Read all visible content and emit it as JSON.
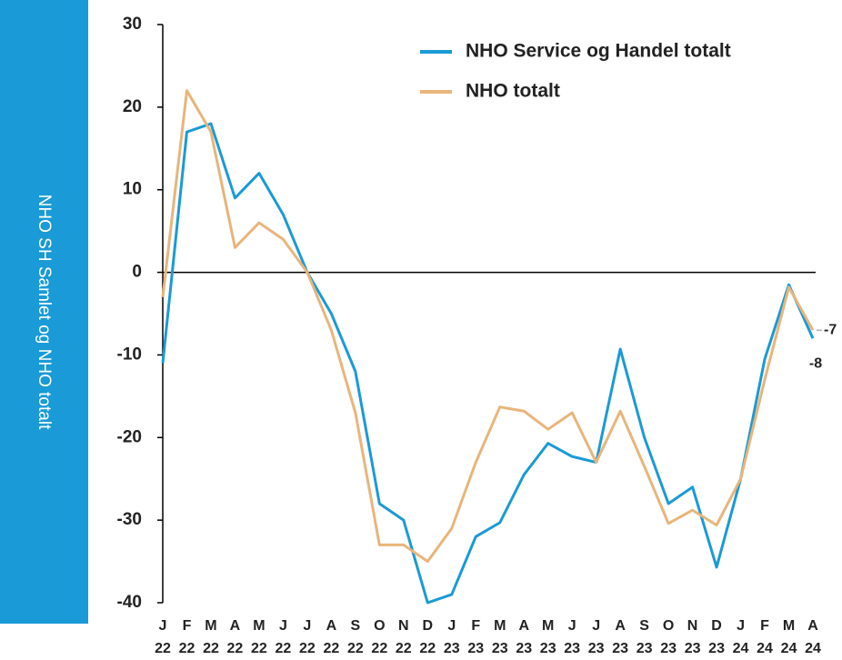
{
  "chart_data": {
    "type": "line",
    "ylabel": "NHO SH Samlet og NHO totalt",
    "categories": [
      "J 22",
      "F 22",
      "M 22",
      "A 22",
      "M 22",
      "J 22",
      "J 22",
      "A 22",
      "S 22",
      "O 22",
      "N 22",
      "D 22",
      "J 23",
      "F 23",
      "M 23",
      "A 23",
      "M 23",
      "J 23",
      "J 23",
      "A 23",
      "S 23",
      "O 23",
      "N 23",
      "D 23",
      "J 24",
      "F 24",
      "M 24",
      "A 24"
    ],
    "series": [
      {
        "name": "NHO Service og Handel totalt",
        "color": "#1a9ad6",
        "values": [
          -11,
          17,
          18,
          9,
          12,
          7,
          0,
          -5,
          -12,
          -28,
          -30,
          -40,
          -39,
          -32,
          -30.3,
          -24.5,
          -20.7,
          -22.3,
          -23,
          -9.3,
          -20,
          -28,
          -26,
          -35.7,
          -25,
          -10.5,
          -1.5,
          -8
        ]
      },
      {
        "name": "NHO totalt",
        "color": "#e8b57a",
        "values": [
          -3,
          22,
          17,
          3,
          6,
          4,
          0,
          -7,
          -17,
          -33,
          -33,
          -35,
          -31,
          -23,
          -16.3,
          -16.8,
          -19,
          -17,
          -23,
          -16.8,
          -23.5,
          -30.4,
          -28.8,
          -30.6,
          -25,
          -13,
          -1.8,
          -7
        ]
      }
    ],
    "ylim": [
      -40,
      30
    ],
    "yticks": [
      30,
      20,
      10,
      0,
      -10,
      -20,
      -30,
      -40
    ]
  }
}
